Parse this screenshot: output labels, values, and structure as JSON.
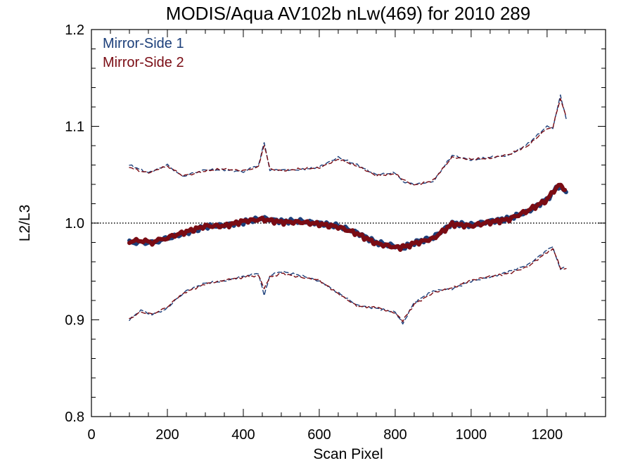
{
  "chart_data": {
    "type": "line",
    "title": "MODIS/Aqua AV102b nLw(469) for 2010 289",
    "xlabel": "Scan Pixel",
    "ylabel": "L2/L3",
    "xlim": [
      0,
      1354
    ],
    "ylim": [
      0.8,
      1.2
    ],
    "xticks": [
      0,
      200,
      400,
      600,
      800,
      1000,
      1200
    ],
    "xtick_labels": [
      "0",
      "200",
      "400",
      "600",
      "800",
      "1000",
      "1200"
    ],
    "yticks": [
      0.8,
      0.9,
      1.0,
      1.1,
      1.2
    ],
    "ytick_labels": [
      "0.8",
      "0.9",
      "1.0",
      "1.1",
      "1.2"
    ],
    "reference_line": 1.0,
    "legend_position": "top-left",
    "colors": {
      "ms1": "#1c3f7a",
      "ms2": "#7a0c14"
    },
    "series": [
      {
        "name": "Mirror-Side 1",
        "role": "mean",
        "color": "#1c3f7a",
        "x": [
          100,
          130,
          160,
          200,
          250,
          300,
          350,
          400,
          450,
          500,
          550,
          600,
          650,
          700,
          750,
          800,
          820,
          850,
          900,
          950,
          1000,
          1050,
          1100,
          1150,
          1200,
          1230,
          1250
        ],
        "y": [
          0.98,
          0.98,
          0.98,
          0.984,
          0.99,
          0.996,
          0.998,
          1.001,
          1.005,
          1.002,
          1.002,
          1.0,
          0.997,
          0.99,
          0.98,
          0.976,
          0.974,
          0.98,
          0.985,
          1.0,
          0.998,
          1.002,
          1.005,
          1.012,
          1.025,
          1.038,
          1.032
        ]
      },
      {
        "name": "Mirror-Side 2",
        "role": "mean",
        "color": "#7a0c14",
        "x": [
          100,
          130,
          160,
          200,
          250,
          300,
          350,
          400,
          450,
          500,
          550,
          600,
          650,
          700,
          750,
          800,
          820,
          850,
          900,
          950,
          1000,
          1050,
          1100,
          1150,
          1200,
          1230,
          1250
        ],
        "y": [
          0.981,
          0.982,
          0.98,
          0.985,
          0.991,
          0.997,
          0.997,
          1.002,
          1.004,
          1.001,
          1.001,
          0.999,
          0.996,
          0.989,
          0.979,
          0.975,
          0.975,
          0.979,
          0.984,
          0.999,
          0.997,
          1.001,
          1.004,
          1.013,
          1.024,
          1.04,
          1.034
        ]
      },
      {
        "name": "Mirror-Side 1",
        "role": "upper",
        "color": "#1c3f7a",
        "x": [
          100,
          125,
          150,
          200,
          240,
          270,
          300,
          350,
          400,
          440,
          455,
          470,
          500,
          550,
          600,
          650,
          700,
          750,
          800,
          820,
          850,
          900,
          950,
          1000,
          1050,
          1100,
          1150,
          1200,
          1215,
          1235,
          1250
        ],
        "y": [
          1.06,
          1.056,
          1.052,
          1.06,
          1.048,
          1.052,
          1.055,
          1.055,
          1.053,
          1.06,
          1.084,
          1.055,
          1.055,
          1.055,
          1.058,
          1.068,
          1.06,
          1.05,
          1.052,
          1.043,
          1.04,
          1.043,
          1.07,
          1.065,
          1.068,
          1.07,
          1.082,
          1.1,
          1.098,
          1.132,
          1.108
        ]
      },
      {
        "name": "Mirror-Side 2",
        "role": "upper",
        "color": "#7a0c14",
        "x": [
          100,
          125,
          150,
          200,
          240,
          270,
          300,
          350,
          400,
          440,
          455,
          470,
          500,
          550,
          600,
          650,
          700,
          750,
          800,
          820,
          850,
          900,
          950,
          1000,
          1050,
          1100,
          1150,
          1200,
          1215,
          1235,
          1250
        ],
        "y": [
          1.058,
          1.054,
          1.052,
          1.059,
          1.049,
          1.051,
          1.054,
          1.056,
          1.054,
          1.058,
          1.08,
          1.056,
          1.054,
          1.056,
          1.057,
          1.066,
          1.059,
          1.049,
          1.051,
          1.045,
          1.039,
          1.044,
          1.068,
          1.066,
          1.067,
          1.071,
          1.08,
          1.098,
          1.099,
          1.129,
          1.11
        ]
      },
      {
        "name": "Mirror-Side 1",
        "role": "lower",
        "color": "#1c3f7a",
        "x": [
          100,
          130,
          160,
          200,
          220,
          250,
          300,
          350,
          400,
          440,
          455,
          470,
          500,
          550,
          600,
          650,
          700,
          750,
          800,
          820,
          850,
          900,
          950,
          1000,
          1050,
          1100,
          1150,
          1200,
          1215,
          1235,
          1250
        ],
        "y": [
          0.9,
          0.91,
          0.905,
          0.912,
          0.92,
          0.93,
          0.938,
          0.94,
          0.945,
          0.948,
          0.926,
          0.946,
          0.95,
          0.946,
          0.94,
          0.928,
          0.915,
          0.912,
          0.908,
          0.896,
          0.918,
          0.93,
          0.932,
          0.94,
          0.944,
          0.95,
          0.957,
          0.972,
          0.975,
          0.952,
          0.955
        ]
      },
      {
        "name": "Mirror-Side 2",
        "role": "lower",
        "color": "#7a0c14",
        "x": [
          100,
          130,
          160,
          200,
          220,
          250,
          300,
          350,
          400,
          440,
          455,
          470,
          500,
          550,
          600,
          650,
          700,
          750,
          800,
          820,
          850,
          900,
          950,
          1000,
          1050,
          1100,
          1150,
          1200,
          1215,
          1235,
          1250
        ],
        "y": [
          0.901,
          0.908,
          0.906,
          0.913,
          0.921,
          0.929,
          0.937,
          0.941,
          0.944,
          0.946,
          0.932,
          0.944,
          0.948,
          0.944,
          0.941,
          0.927,
          0.914,
          0.913,
          0.907,
          0.899,
          0.916,
          0.928,
          0.933,
          0.941,
          0.945,
          0.948,
          0.955,
          0.97,
          0.974,
          0.954,
          0.953
        ]
      }
    ]
  }
}
